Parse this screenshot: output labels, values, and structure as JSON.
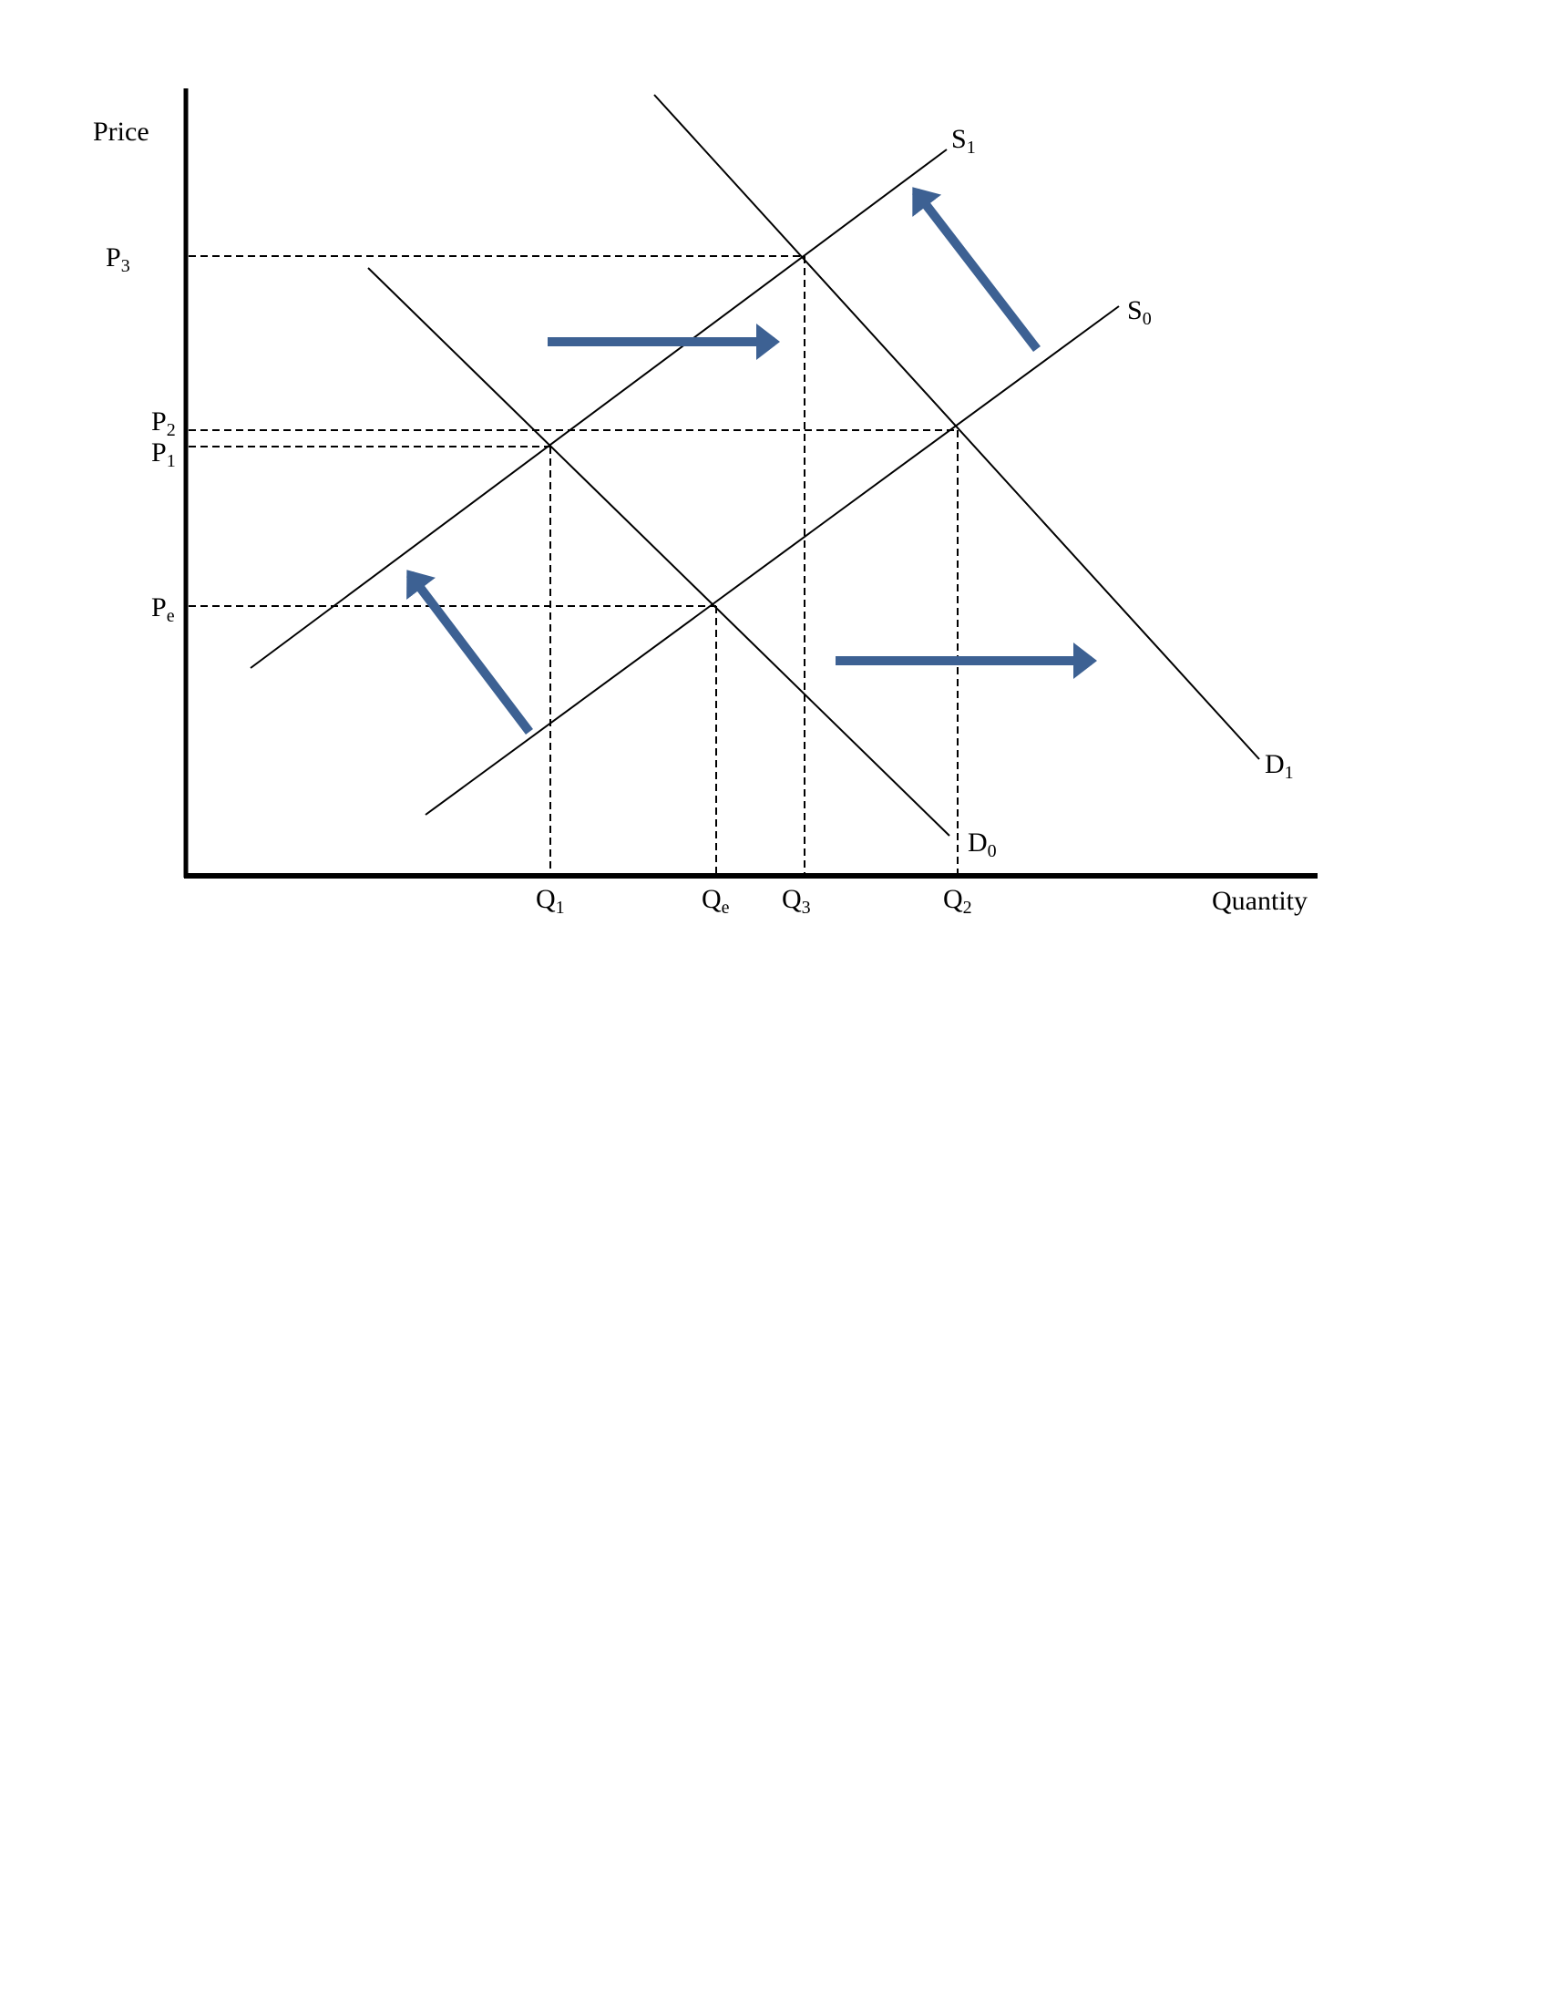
{
  "axes": {
    "y_label": "Price",
    "x_label": "Quantity"
  },
  "price_labels": [
    {
      "base": "P",
      "sub": "3"
    },
    {
      "base": "P",
      "sub": "2"
    },
    {
      "base": "P",
      "sub": "1"
    },
    {
      "base": "P",
      "sub": "e"
    }
  ],
  "quantity_labels": [
    {
      "base": "Q",
      "sub": "1"
    },
    {
      "base": "Q",
      "sub": "e"
    },
    {
      "base": "Q",
      "sub": "3"
    },
    {
      "base": "Q",
      "sub": "2"
    }
  ],
  "curves": {
    "s1": {
      "base": "S",
      "sub": "1"
    },
    "s0": {
      "base": "S",
      "sub": "0"
    },
    "d1": {
      "base": "D",
      "sub": "1"
    },
    "d0": {
      "base": "D",
      "sub": "0"
    }
  },
  "colors": {
    "arrow": "#3d6193",
    "line": "#000000"
  }
}
